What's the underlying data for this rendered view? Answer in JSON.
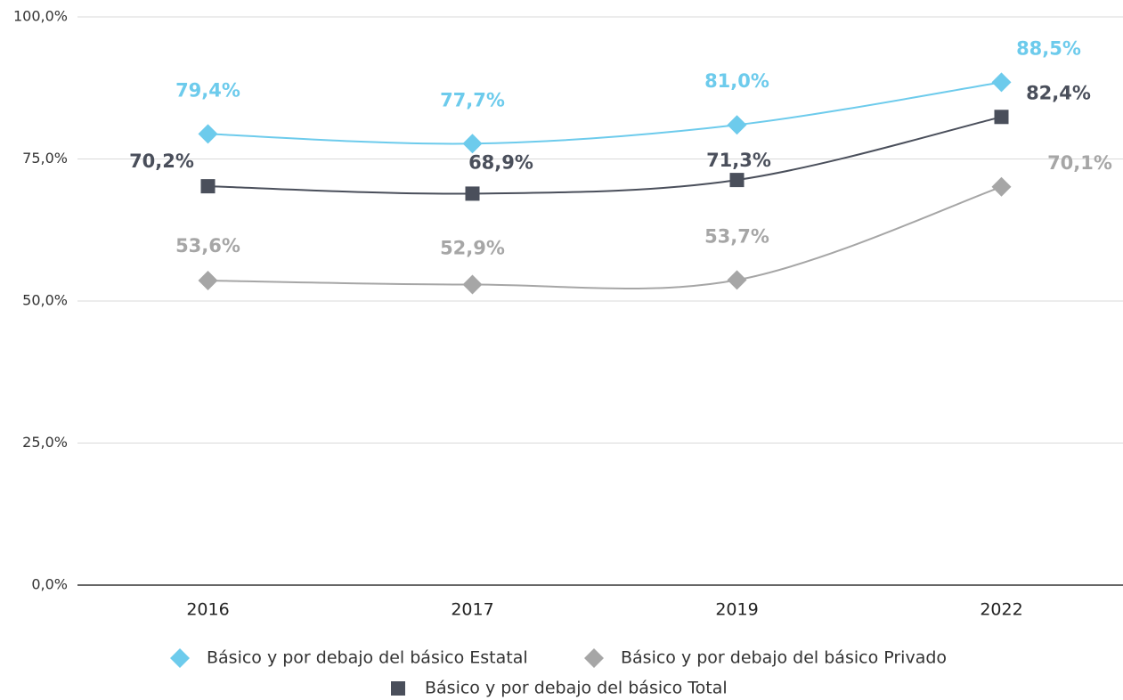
{
  "chart_data": {
    "type": "line",
    "categories": [
      "2016",
      "2017",
      "2019",
      "2022"
    ],
    "series": [
      {
        "name": "Básico y por debajo del básico Estatal",
        "color": "#6dcbec",
        "marker": "diamond",
        "values": [
          79.4,
          77.7,
          81.0,
          88.5
        ],
        "value_labels": [
          "79,4%",
          "77,7%",
          "81,0%",
          "88,5%"
        ]
      },
      {
        "name": "Básico y por debajo del básico Privado",
        "color": "#a6a6a6",
        "marker": "diamond",
        "values": [
          53.6,
          52.9,
          53.7,
          70.1
        ],
        "value_labels": [
          "53,6%",
          "52,9%",
          "53,7%",
          "70,1%"
        ]
      },
      {
        "name": "Básico y por debajo del básico Total",
        "color": "#4a4f5b",
        "marker": "square",
        "values": [
          70.2,
          68.9,
          71.3,
          82.4
        ],
        "value_labels": [
          "70,2%",
          "68,9%",
          "71,3%",
          "82,4%"
        ]
      }
    ],
    "ylim": [
      0,
      100
    ],
    "yticks": [
      {
        "value": 0,
        "label": "0,0%"
      },
      {
        "value": 25,
        "label": "25,0%"
      },
      {
        "value": 50,
        "label": "50,0%"
      },
      {
        "value": 75,
        "label": "75,0%"
      },
      {
        "value": 100,
        "label": "100,0%"
      }
    ],
    "grid": true,
    "smooth": true,
    "legend": "bottom"
  }
}
